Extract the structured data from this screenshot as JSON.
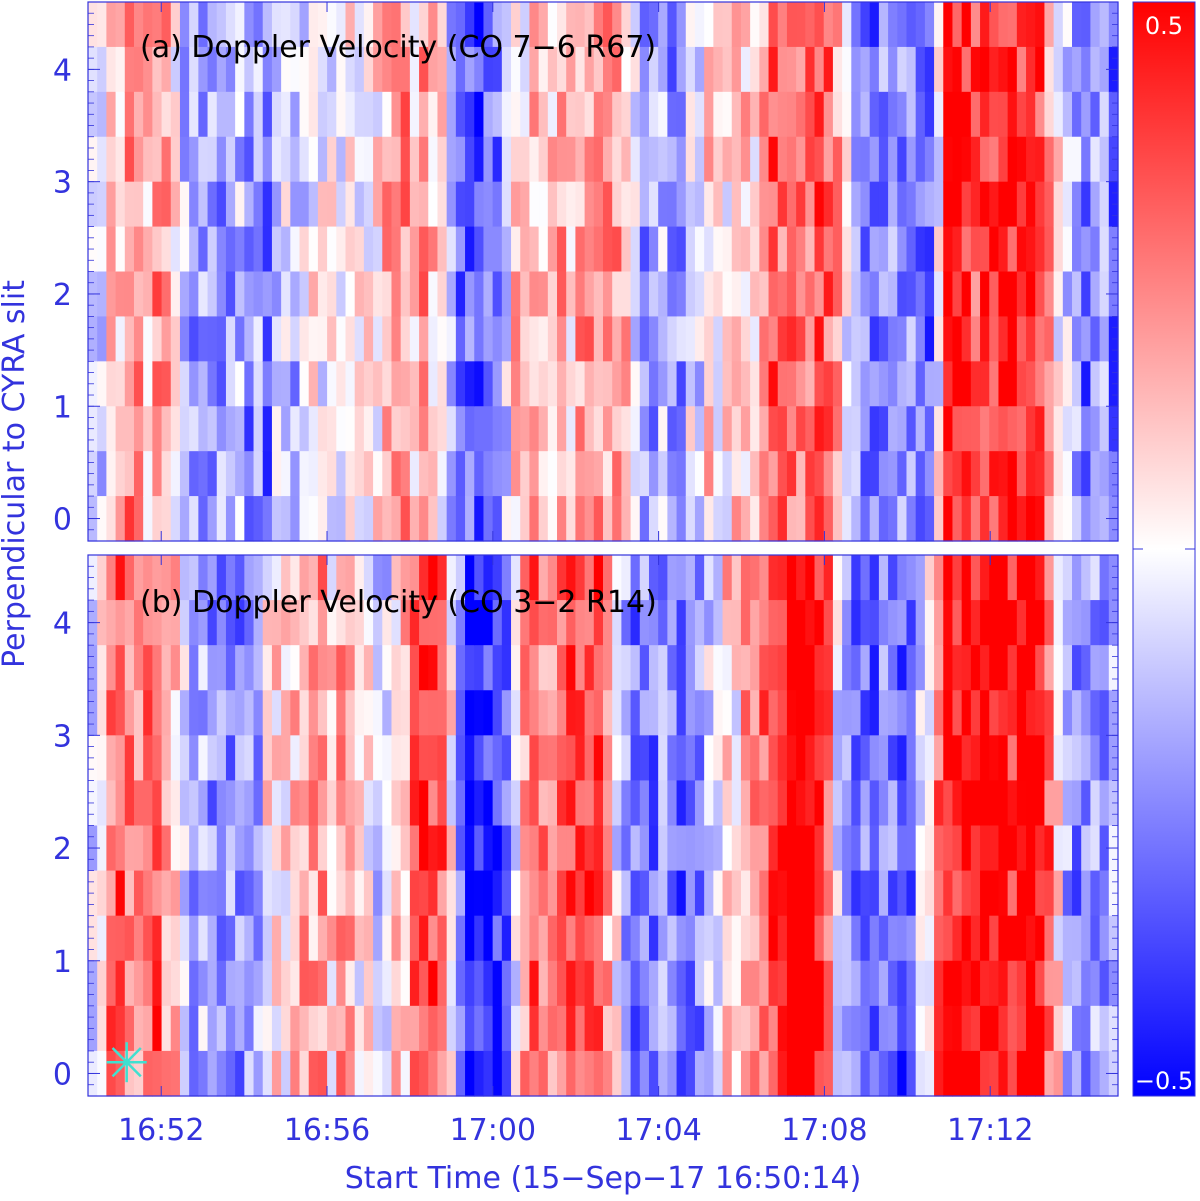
{
  "chart_data": [
    {
      "type": "heatmap",
      "title": "(a) Doppler Velocity (CO 7−6 R67)",
      "xlabel": "",
      "ylabel": "Perpendicular to CYRA slit",
      "x_tick_labels": [
        "16:52",
        "16:56",
        "17:00",
        "17:04",
        "17:08",
        "17:12"
      ],
      "y_tick_labels": [
        "0",
        "1",
        "2",
        "3",
        "4"
      ],
      "xlim": [
        "16:50:14",
        "17:15:05"
      ],
      "ylim": [
        -0.2,
        4.6
      ],
      "color_scale": "blue-white-red",
      "bands": [
        {
          "x": [
            "16:51:00",
            "16:52:10"
          ],
          "value": 0.18
        },
        {
          "x": [
            "16:52:30",
            "16:53:30"
          ],
          "value": -0.1
        },
        {
          "x": [
            "16:53:30",
            "16:55:00"
          ],
          "value": -0.18
        },
        {
          "x": [
            "16:55:00",
            "16:57:00"
          ],
          "value": -0.05
        },
        {
          "x": [
            "16:57:00",
            "16:59:00"
          ],
          "value": 0.15
        },
        {
          "x": [
            "16:59:00",
            "17:00:10"
          ],
          "value": -0.3
        },
        {
          "x": [
            "17:00:20",
            "17:02:00"
          ],
          "value": 0.08
        },
        {
          "x": [
            "17:02:00",
            "17:03:20"
          ],
          "value": 0.2
        },
        {
          "x": [
            "17:03:20",
            "17:04:50"
          ],
          "value": -0.15
        },
        {
          "x": [
            "17:04:50",
            "17:06:30"
          ],
          "value": 0.05
        },
        {
          "x": [
            "17:06:30",
            "17:08:30"
          ],
          "value": 0.3
        },
        {
          "x": [
            "17:08:30",
            "17:10:30"
          ],
          "value": -0.2
        },
        {
          "x": [
            "17:11:00",
            "17:13:40"
          ],
          "value": 0.38
        },
        {
          "x": [
            "17:13:40",
            "17:15:05"
          ],
          "value": -0.2
        }
      ]
    },
    {
      "type": "heatmap",
      "title": "(b) Doppler Velocity (CO 3−2 R14)",
      "xlabel": "Start Time (15−Sep−17 16:50:14)",
      "ylabel": "Perpendicular to CYRA slit",
      "x_tick_labels": [
        "16:52",
        "16:56",
        "17:00",
        "17:04",
        "17:08",
        "17:12"
      ],
      "y_tick_labels": [
        "0",
        "1",
        "2",
        "3",
        "4"
      ],
      "xlim": [
        "16:50:14",
        "17:15:05"
      ],
      "ylim": [
        -0.2,
        4.6
      ],
      "color_scale": "blue-white-red",
      "marker": {
        "symbol": "asterisk",
        "x": "16:51:10",
        "y": 0.1,
        "color": "#40e0d0"
      },
      "bands": [
        {
          "x": [
            "16:51:00",
            "16:52:20"
          ],
          "value": 0.25
        },
        {
          "x": [
            "16:52:20",
            "16:54:30"
          ],
          "value": -0.2
        },
        {
          "x": [
            "16:54:30",
            "16:57:00"
          ],
          "value": 0.12
        },
        {
          "x": [
            "16:57:00",
            "16:57:50"
          ],
          "value": -0.12
        },
        {
          "x": [
            "16:57:50",
            "16:59:00"
          ],
          "value": 0.35
        },
        {
          "x": [
            "16:59:00",
            "17:00:30"
          ],
          "value": -0.38
        },
        {
          "x": [
            "17:00:30",
            "17:03:00"
          ],
          "value": 0.28
        },
        {
          "x": [
            "17:03:00",
            "17:05:30"
          ],
          "value": -0.22
        },
        {
          "x": [
            "17:05:30",
            "17:06:30"
          ],
          "value": 0.1
        },
        {
          "x": [
            "17:06:30",
            "17:08:10"
          ],
          "value": 0.48
        },
        {
          "x": [
            "17:08:10",
            "17:10:30"
          ],
          "value": -0.28
        },
        {
          "x": [
            "17:10:30",
            "17:13:40"
          ],
          "value": 0.42
        },
        {
          "x": [
            "17:13:40",
            "17:15:05"
          ],
          "value": -0.22
        }
      ]
    }
  ],
  "colorbar": {
    "max_label": "0.5",
    "min_label": "−0.5",
    "vmin": -0.5,
    "vmax": 0.5,
    "colors": {
      "low": "#0000ff",
      "mid": "#ffffff",
      "high": "#ff0000"
    }
  },
  "colors": {
    "axis": "#3333dd",
    "title_text": "#000000"
  }
}
